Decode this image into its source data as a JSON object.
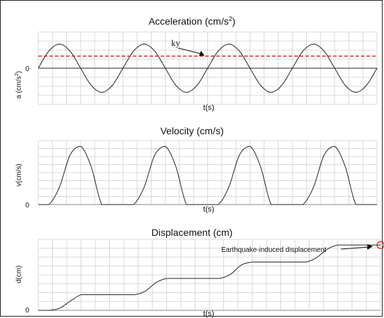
{
  "chart_data": [
    {
      "type": "line",
      "title_main": "Acceleration (cm/s",
      "title_sup": "2",
      "title_end": ")",
      "ylabel_main": "a (cm/s",
      "ylabel_sup": "2",
      "ylabel_end": ")",
      "xlabel": "t(s)",
      "y_ticks": [
        "0"
      ],
      "xlim": [
        0,
        8
      ],
      "ylim": [
        -1.5,
        1.5
      ],
      "x": [
        0,
        0.25,
        0.5,
        0.75,
        1,
        1.25,
        1.5,
        1.75,
        2,
        2.25,
        2.5,
        2.75,
        3,
        3.25,
        3.5,
        3.75,
        4,
        4.25,
        4.5,
        4.75,
        5,
        5.25,
        5.5,
        5.75,
        6,
        6.25,
        6.5,
        6.75,
        7,
        7.25,
        7.5,
        7.75,
        8
      ],
      "series": [
        {
          "values": [
            0,
            0.71,
            1,
            0.71,
            0,
            -0.71,
            -1,
            -0.71,
            0,
            0.71,
            1,
            0.71,
            0,
            -0.71,
            -1,
            -0.71,
            0,
            0.71,
            1,
            0.71,
            0,
            -0.71,
            -1,
            -0.71,
            0,
            0.71,
            1,
            0.71,
            0,
            -0.71,
            -1,
            -0.71,
            0
          ],
          "color": "#222222"
        }
      ],
      "threshold": {
        "label": "ky",
        "value": 0.5,
        "color": "#e02020"
      },
      "grid": true
    },
    {
      "type": "line",
      "title": "Velocity (cm/s)",
      "ylabel": "v(cm/s)",
      "xlabel": "t(s)",
      "y_ticks": [
        "0"
      ],
      "xlim": [
        0,
        8
      ],
      "ylim": [
        0,
        1.1
      ],
      "x": [
        0,
        0.25,
        0.5,
        0.75,
        1,
        1.25,
        1.5,
        1.75,
        2,
        2.25,
        2.5,
        2.75,
        3,
        3.25,
        3.5,
        3.75,
        4,
        4.25,
        4.5,
        4.75,
        5,
        5.25,
        5.5,
        5.75,
        6,
        6.25,
        6.5,
        6.75,
        7,
        7.25,
        7.5,
        7.75,
        8
      ],
      "series": [
        {
          "values": [
            0,
            0,
            0.3,
            0.85,
            1,
            0.65,
            0,
            0,
            0,
            0,
            0.3,
            0.85,
            1,
            0.65,
            0,
            0,
            0,
            0,
            0.3,
            0.85,
            1,
            0.65,
            0,
            0,
            0,
            0,
            0.3,
            0.85,
            1,
            0.65,
            0,
            0,
            0
          ],
          "color": "#222222"
        }
      ],
      "grid": true
    },
    {
      "type": "line",
      "title": "Displacement (cm)",
      "ylabel": "d(cm)",
      "xlabel": "t(s)",
      "y_ticks": [
        "0"
      ],
      "xlim": [
        0,
        8
      ],
      "ylim": [
        0,
        1
      ],
      "x": [
        0,
        0.25,
        0.5,
        0.75,
        1,
        1.25,
        1.5,
        1.75,
        2,
        2.25,
        2.5,
        2.75,
        3,
        3.25,
        3.5,
        3.75,
        4,
        4.25,
        4.5,
        4.75,
        5,
        5.25,
        5.5,
        5.75,
        6,
        6.25,
        6.5,
        6.75,
        7,
        7.25,
        7.5,
        7.75,
        8
      ],
      "series": [
        {
          "values": [
            0,
            0,
            0.03,
            0.13,
            0.22,
            0.22,
            0.22,
            0.22,
            0.22,
            0.22,
            0.27,
            0.39,
            0.45,
            0.45,
            0.45,
            0.45,
            0.45,
            0.45,
            0.51,
            0.64,
            0.68,
            0.68,
            0.68,
            0.68,
            0.68,
            0.68,
            0.74,
            0.86,
            0.92,
            0.92,
            0.92,
            0.92,
            0.92
          ],
          "color": "#222222"
        }
      ],
      "annotation": {
        "label": "Earthquake-induced displacement",
        "x": 8,
        "y": 0.92,
        "marker_color": "#e02020"
      },
      "grid": true
    }
  ]
}
